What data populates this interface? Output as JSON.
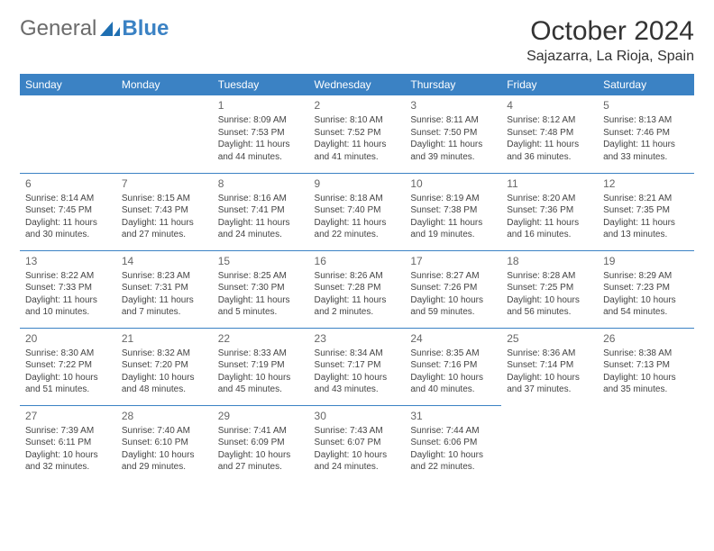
{
  "brand": {
    "part1": "General",
    "part2": "Blue"
  },
  "title": "October 2024",
  "location": "Sajazarra, La Rioja, Spain",
  "colors": {
    "header_bg": "#3b82c4",
    "header_fg": "#ffffff",
    "border": "#3b82c4",
    "text": "#444444"
  },
  "day_headers": [
    "Sunday",
    "Monday",
    "Tuesday",
    "Wednesday",
    "Thursday",
    "Friday",
    "Saturday"
  ],
  "weeks": [
    [
      null,
      null,
      {
        "n": "1",
        "sr": "Sunrise: 8:09 AM",
        "ss": "Sunset: 7:53 PM",
        "d1": "Daylight: 11 hours",
        "d2": "and 44 minutes."
      },
      {
        "n": "2",
        "sr": "Sunrise: 8:10 AM",
        "ss": "Sunset: 7:52 PM",
        "d1": "Daylight: 11 hours",
        "d2": "and 41 minutes."
      },
      {
        "n": "3",
        "sr": "Sunrise: 8:11 AM",
        "ss": "Sunset: 7:50 PM",
        "d1": "Daylight: 11 hours",
        "d2": "and 39 minutes."
      },
      {
        "n": "4",
        "sr": "Sunrise: 8:12 AM",
        "ss": "Sunset: 7:48 PM",
        "d1": "Daylight: 11 hours",
        "d2": "and 36 minutes."
      },
      {
        "n": "5",
        "sr": "Sunrise: 8:13 AM",
        "ss": "Sunset: 7:46 PM",
        "d1": "Daylight: 11 hours",
        "d2": "and 33 minutes."
      }
    ],
    [
      {
        "n": "6",
        "sr": "Sunrise: 8:14 AM",
        "ss": "Sunset: 7:45 PM",
        "d1": "Daylight: 11 hours",
        "d2": "and 30 minutes."
      },
      {
        "n": "7",
        "sr": "Sunrise: 8:15 AM",
        "ss": "Sunset: 7:43 PM",
        "d1": "Daylight: 11 hours",
        "d2": "and 27 minutes."
      },
      {
        "n": "8",
        "sr": "Sunrise: 8:16 AM",
        "ss": "Sunset: 7:41 PM",
        "d1": "Daylight: 11 hours",
        "d2": "and 24 minutes."
      },
      {
        "n": "9",
        "sr": "Sunrise: 8:18 AM",
        "ss": "Sunset: 7:40 PM",
        "d1": "Daylight: 11 hours",
        "d2": "and 22 minutes."
      },
      {
        "n": "10",
        "sr": "Sunrise: 8:19 AM",
        "ss": "Sunset: 7:38 PM",
        "d1": "Daylight: 11 hours",
        "d2": "and 19 minutes."
      },
      {
        "n": "11",
        "sr": "Sunrise: 8:20 AM",
        "ss": "Sunset: 7:36 PM",
        "d1": "Daylight: 11 hours",
        "d2": "and 16 minutes."
      },
      {
        "n": "12",
        "sr": "Sunrise: 8:21 AM",
        "ss": "Sunset: 7:35 PM",
        "d1": "Daylight: 11 hours",
        "d2": "and 13 minutes."
      }
    ],
    [
      {
        "n": "13",
        "sr": "Sunrise: 8:22 AM",
        "ss": "Sunset: 7:33 PM",
        "d1": "Daylight: 11 hours",
        "d2": "and 10 minutes."
      },
      {
        "n": "14",
        "sr": "Sunrise: 8:23 AM",
        "ss": "Sunset: 7:31 PM",
        "d1": "Daylight: 11 hours",
        "d2": "and 7 minutes."
      },
      {
        "n": "15",
        "sr": "Sunrise: 8:25 AM",
        "ss": "Sunset: 7:30 PM",
        "d1": "Daylight: 11 hours",
        "d2": "and 5 minutes."
      },
      {
        "n": "16",
        "sr": "Sunrise: 8:26 AM",
        "ss": "Sunset: 7:28 PM",
        "d1": "Daylight: 11 hours",
        "d2": "and 2 minutes."
      },
      {
        "n": "17",
        "sr": "Sunrise: 8:27 AM",
        "ss": "Sunset: 7:26 PM",
        "d1": "Daylight: 10 hours",
        "d2": "and 59 minutes."
      },
      {
        "n": "18",
        "sr": "Sunrise: 8:28 AM",
        "ss": "Sunset: 7:25 PM",
        "d1": "Daylight: 10 hours",
        "d2": "and 56 minutes."
      },
      {
        "n": "19",
        "sr": "Sunrise: 8:29 AM",
        "ss": "Sunset: 7:23 PM",
        "d1": "Daylight: 10 hours",
        "d2": "and 54 minutes."
      }
    ],
    [
      {
        "n": "20",
        "sr": "Sunrise: 8:30 AM",
        "ss": "Sunset: 7:22 PM",
        "d1": "Daylight: 10 hours",
        "d2": "and 51 minutes."
      },
      {
        "n": "21",
        "sr": "Sunrise: 8:32 AM",
        "ss": "Sunset: 7:20 PM",
        "d1": "Daylight: 10 hours",
        "d2": "and 48 minutes."
      },
      {
        "n": "22",
        "sr": "Sunrise: 8:33 AM",
        "ss": "Sunset: 7:19 PM",
        "d1": "Daylight: 10 hours",
        "d2": "and 45 minutes."
      },
      {
        "n": "23",
        "sr": "Sunrise: 8:34 AM",
        "ss": "Sunset: 7:17 PM",
        "d1": "Daylight: 10 hours",
        "d2": "and 43 minutes."
      },
      {
        "n": "24",
        "sr": "Sunrise: 8:35 AM",
        "ss": "Sunset: 7:16 PM",
        "d1": "Daylight: 10 hours",
        "d2": "and 40 minutes."
      },
      {
        "n": "25",
        "sr": "Sunrise: 8:36 AM",
        "ss": "Sunset: 7:14 PM",
        "d1": "Daylight: 10 hours",
        "d2": "and 37 minutes."
      },
      {
        "n": "26",
        "sr": "Sunrise: 8:38 AM",
        "ss": "Sunset: 7:13 PM",
        "d1": "Daylight: 10 hours",
        "d2": "and 35 minutes."
      }
    ],
    [
      {
        "n": "27",
        "sr": "Sunrise: 7:39 AM",
        "ss": "Sunset: 6:11 PM",
        "d1": "Daylight: 10 hours",
        "d2": "and 32 minutes."
      },
      {
        "n": "28",
        "sr": "Sunrise: 7:40 AM",
        "ss": "Sunset: 6:10 PM",
        "d1": "Daylight: 10 hours",
        "d2": "and 29 minutes."
      },
      {
        "n": "29",
        "sr": "Sunrise: 7:41 AM",
        "ss": "Sunset: 6:09 PM",
        "d1": "Daylight: 10 hours",
        "d2": "and 27 minutes."
      },
      {
        "n": "30",
        "sr": "Sunrise: 7:43 AM",
        "ss": "Sunset: 6:07 PM",
        "d1": "Daylight: 10 hours",
        "d2": "and 24 minutes."
      },
      {
        "n": "31",
        "sr": "Sunrise: 7:44 AM",
        "ss": "Sunset: 6:06 PM",
        "d1": "Daylight: 10 hours",
        "d2": "and 22 minutes."
      },
      null,
      null
    ]
  ]
}
